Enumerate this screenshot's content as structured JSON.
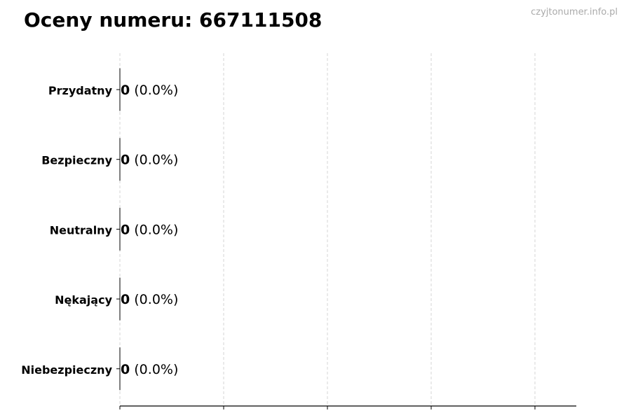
{
  "chart_data": {
    "type": "bar",
    "orientation": "horizontal",
    "title": "Oceny numeru: 667111508",
    "watermark": "czyjtonumer.info.pl",
    "categories": [
      "Przydatny",
      "Bezpieczny",
      "Neutralny",
      "Nękający",
      "Niebezpieczny"
    ],
    "values": [
      0,
      0,
      0,
      0,
      0
    ],
    "percent_labels": [
      "(0.0%)",
      "(0.0%)",
      "(0.0%)",
      "(0.0%)",
      "(0.0%)"
    ],
    "xlabel": "",
    "ylabel": "",
    "grid": "vertical dashed",
    "x_tick_labels_shown": false,
    "colors": {
      "bar_edge": "#000000",
      "grid": "#cccccc",
      "watermark": "#aaaaaa"
    }
  }
}
